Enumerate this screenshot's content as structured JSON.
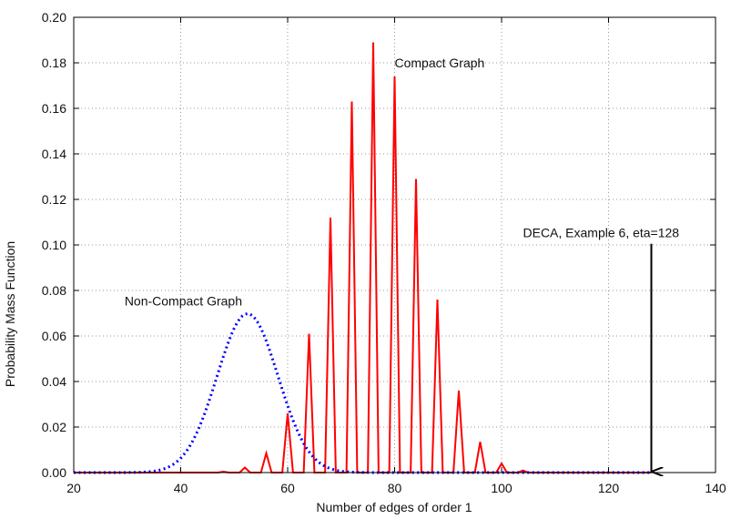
{
  "chart_data": {
    "type": "line",
    "xlabel": "Number of edges of order 1",
    "ylabel": "Probability Mass Function",
    "xlim": [
      20,
      140
    ],
    "ylim": [
      0,
      0.2
    ],
    "xticks": [
      20,
      40,
      60,
      80,
      100,
      120,
      140
    ],
    "yticks": [
      0.0,
      0.02,
      0.04,
      0.06,
      0.08,
      0.1,
      0.12,
      0.14,
      0.16,
      0.18,
      0.2
    ],
    "ytick_decimals": 2,
    "grid": true,
    "series": [
      {
        "label": "Compact Graph",
        "color": "#ff0000",
        "style": "solid",
        "points": [
          [
            20,
            0
          ],
          [
            44,
            0
          ],
          [
            47,
            0
          ],
          [
            48,
            0.0004
          ],
          [
            49,
            0
          ],
          [
            51,
            0
          ],
          [
            52,
            0.0022
          ],
          [
            53,
            0
          ],
          [
            55,
            0
          ],
          [
            56,
            0.0085
          ],
          [
            57,
            0
          ],
          [
            59,
            0
          ],
          [
            60,
            0.026
          ],
          [
            61,
            0
          ],
          [
            63,
            0
          ],
          [
            64,
            0.061
          ],
          [
            65,
            0
          ],
          [
            67,
            0
          ],
          [
            68,
            0.112
          ],
          [
            69,
            0
          ],
          [
            71,
            0
          ],
          [
            72,
            0.163
          ],
          [
            73,
            0
          ],
          [
            75,
            0
          ],
          [
            76,
            0.189
          ],
          [
            77,
            0
          ],
          [
            79,
            0
          ],
          [
            80,
            0.174
          ],
          [
            81,
            0
          ],
          [
            83,
            0
          ],
          [
            84,
            0.129
          ],
          [
            85,
            0
          ],
          [
            87,
            0
          ],
          [
            88,
            0.076
          ],
          [
            89,
            0
          ],
          [
            91,
            0
          ],
          [
            92,
            0.036
          ],
          [
            93,
            0
          ],
          [
            95,
            0
          ],
          [
            96,
            0.0135
          ],
          [
            97,
            0
          ],
          [
            99,
            0
          ],
          [
            100,
            0.004
          ],
          [
            101,
            0
          ],
          [
            103,
            0
          ],
          [
            104,
            0.0009
          ],
          [
            105,
            0
          ],
          [
            128,
            0
          ]
        ]
      },
      {
        "label": "Non-Compact Graph",
        "color": "#0000ff",
        "style": "dotted",
        "gaussian": {
          "mean": 52.5,
          "sd": 5.7,
          "peak": 0.0698,
          "x_from": 20,
          "x_to": 128
        }
      }
    ],
    "annotations": [
      {
        "text": "Compact Graph",
        "x": 80.0,
        "y": 0.178
      },
      {
        "text": "Non-Compact Graph",
        "x": 29.5,
        "y": 0.0735
      },
      {
        "text": "DECA, Example 6, eta=128",
        "x": 104.0,
        "y": 0.1035
      }
    ],
    "arrow": {
      "x": 128,
      "y_from": 0.1005,
      "y_to": 0.0
    }
  }
}
